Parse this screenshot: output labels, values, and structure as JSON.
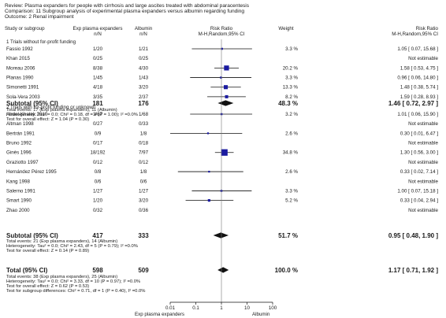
{
  "header": {
    "review": "Review:  Plasma expanders for people with cirrhosis and large ascites treated with abdominal paracentesis",
    "comparison": "Comparison:  11 Subgroup analysis of experimental plasma expanders versus albumin regarding funding",
    "outcome": "Outcome:  2 Renal impairment"
  },
  "columns": {
    "study": "Study or subgroup",
    "exp_label": "Exp plasma expanders",
    "exp_sub": "n/N",
    "ctl_label": "Albumin",
    "ctl_sub": "n/N",
    "rr_label": "Risk Ratio",
    "rr_sub": "M-H,Random,95% CI",
    "weight": "Weight",
    "rr2_label": "Risk Ratio",
    "rr2_sub": "M-H,Random,95% CI"
  },
  "chart_data": {
    "type": "forest",
    "x_scale": "log",
    "xlim": [
      0.01,
      100
    ],
    "ticks": [
      "0.01",
      "0.1",
      "1",
      "10",
      "100"
    ],
    "tick_values": [
      0.01,
      0.1,
      1,
      10,
      100
    ],
    "footer_left": "Exp plasma expanders",
    "footer_right": "Albumin",
    "groups": [
      {
        "title": "1 Trials without for-profit funding",
        "studies": [
          {
            "name": "Fassio 1992",
            "exp": "1/20",
            "ctl": "1/21",
            "weight": "3.3 %",
            "ci_text": "1.05 [ 0.07, 15.68 ]",
            "rr": 1.05,
            "lo": 0.07,
            "hi": 15.68,
            "w": 3.3
          },
          {
            "name": "Khan 2015",
            "exp": "0/25",
            "ctl": "0/25",
            "weight": "",
            "ci_text": "Not estimable"
          },
          {
            "name": "Moreau 2006",
            "exp": "8/38",
            "ctl": "4/30",
            "weight": "20.2 %",
            "ci_text": "1.58 [ 0.53, 4.75 ]",
            "rr": 1.58,
            "lo": 0.53,
            "hi": 4.75,
            "w": 20.2
          },
          {
            "name": "Planas 1990",
            "exp": "1/45",
            "ctl": "1/43",
            "weight": "3.3 %",
            "ci_text": "0.96 [ 0.06, 14.80 ]",
            "rr": 0.96,
            "lo": 0.06,
            "hi": 14.8,
            "w": 3.3
          },
          {
            "name": "Simonetti 1991",
            "exp": "4/18",
            "ctl": "3/20",
            "weight": "13.3 %",
            "ci_text": "1.48 [ 0.38, 5.74 ]",
            "rr": 1.48,
            "lo": 0.38,
            "hi": 5.74,
            "w": 13.3
          },
          {
            "name": "Sola-Vera 2003",
            "exp": "3/35",
            "ctl": "2/37",
            "weight": "8.2 %",
            "ci_text": "1.59 [ 0.28, 8.93 ]",
            "rr": 1.59,
            "lo": 0.28,
            "hi": 8.93,
            "w": 8.2
          }
        ],
        "subtotal": {
          "label": "Subtotal (95% CI)",
          "exp": "181",
          "ctl": "176",
          "weight": "48.3 %",
          "ci_text": "1.46 [ 0.72, 2.97 ]",
          "rr": 1.46,
          "lo": 0.72,
          "hi": 2.97
        },
        "notes": [
          "Total events: 17 (Exp plasma expanders), 11 (Albumin)",
          "Heterogeneity: Tau² = 0.0; Chi² = 0.18, df = 4 (P = 1.00); I² =0.0%",
          "Test for overall effect: Z = 1.04 (P = 0.30)"
        ]
      },
      {
        "title": "2 Trials with for-profit funding or unknown",
        "studies": [
          {
            "name": "Abdel-Khalek 2010",
            "exp": "1/67",
            "ctl": "1/68",
            "weight": "3.2 %",
            "ci_text": "1.01 [ 0.06, 15.90 ]",
            "rr": 1.01,
            "lo": 0.06,
            "hi": 15.9,
            "w": 3.2
          },
          {
            "name": "Altman 1998",
            "exp": "0/27",
            "ctl": "0/33",
            "weight": "",
            "ci_text": "Not estimable"
          },
          {
            "name": "Bertrán 1991",
            "exp": "0/9",
            "ctl": "1/8",
            "weight": "2.6 %",
            "ci_text": "0.30 [ 0.01, 6.47 ]",
            "rr": 0.3,
            "lo": 0.01,
            "hi": 6.47,
            "w": 2.6
          },
          {
            "name": "Bruno 1992",
            "exp": "0/17",
            "ctl": "0/18",
            "weight": "",
            "ci_text": "Not estimable"
          },
          {
            "name": "Ginès 1996",
            "exp": "18/192",
            "ctl": "7/97",
            "weight": "34.8 %",
            "ci_text": "1.30 [ 0.56, 3.00 ]",
            "rr": 1.3,
            "lo": 0.56,
            "hi": 3.0,
            "w": 34.8
          },
          {
            "name": "Graziotto 1997",
            "exp": "0/12",
            "ctl": "0/12",
            "weight": "",
            "ci_text": "Not estimable"
          },
          {
            "name": "Hernández Pérez 1995",
            "exp": "0/8",
            "ctl": "1/8",
            "weight": "2.6 %",
            "ci_text": "0.33 [ 0.02, 7.14 ]",
            "rr": 0.33,
            "lo": 0.02,
            "hi": 7.14,
            "w": 2.6
          },
          {
            "name": "Kang 1998",
            "exp": "0/6",
            "ctl": "0/6",
            "weight": "",
            "ci_text": "Not estimable"
          },
          {
            "name": "Salerno 1991",
            "exp": "1/27",
            "ctl": "1/27",
            "weight": "3.3 %",
            "ci_text": "1.00 [ 0.07, 15.18 ]",
            "rr": 1.0,
            "lo": 0.07,
            "hi": 15.18,
            "w": 3.3
          },
          {
            "name": "Smart 1990",
            "exp": "1/20",
            "ctl": "3/20",
            "weight": "5.2 %",
            "ci_text": "0.33 [ 0.04, 2.94 ]",
            "rr": 0.33,
            "lo": 0.04,
            "hi": 2.94,
            "w": 5.2
          },
          {
            "name": "Zhao 2000",
            "exp": "0/32",
            "ctl": "0/36",
            "weight": "",
            "ci_text": "Not estimable"
          }
        ],
        "subtotal": {
          "label": "Subtotal (95% CI)",
          "exp": "417",
          "ctl": "333",
          "weight": "51.7 %",
          "ci_text": "0.95 [ 0.48, 1.90 ]",
          "rr": 0.95,
          "lo": 0.48,
          "hi": 1.9
        },
        "notes": [
          "Total events: 21 (Exp plasma expanders), 14 (Albumin)",
          "Heterogeneity: Tau² = 0.0; Chi² = 2.43, df = 5 (P = 0.79); I² =0.0%",
          "Test for overall effect: Z = 0.14 (P = 0.89)"
        ]
      }
    ],
    "total": {
      "label": "Total (95% CI)",
      "exp": "598",
      "ctl": "509",
      "weight": "100.0 %",
      "ci_text": "1.17 [ 0.71, 1.92 ]",
      "rr": 1.17,
      "lo": 0.71,
      "hi": 1.92,
      "notes": [
        "Total events: 38 (Exp plasma expanders), 25 (Albumin)",
        "Heterogeneity: Tau² = 0.0; Chi² = 3.33, df = 10 (P = 0.97); I² =0.0%",
        "Test for overall effect: Z = 0.62 (P = 0.53)",
        "Test for subgroup differences: Chi² = 0.71, df = 1 (P = 0.40), I² =0.0%"
      ]
    }
  }
}
